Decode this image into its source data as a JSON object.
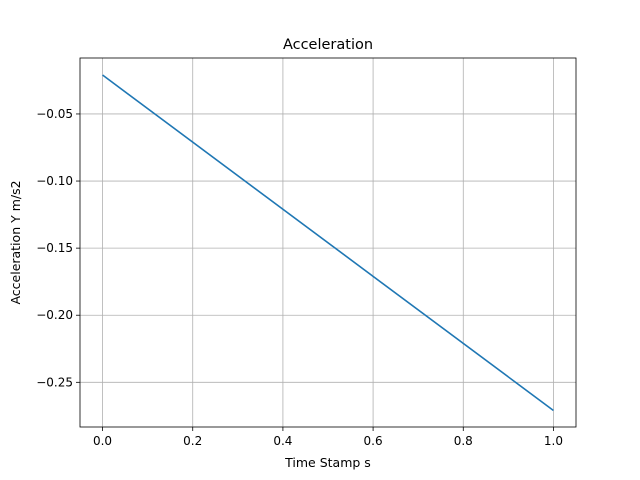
{
  "chart_data": {
    "type": "line",
    "title": "Acceleration",
    "xlabel": "Time Stamp s",
    "ylabel": "Acceleration Y m/s2",
    "xlim": [
      -0.05,
      1.05
    ],
    "ylim": [
      -0.2833,
      -0.0083
    ],
    "xticks": [
      0.0,
      0.2,
      0.4,
      0.6,
      0.8,
      1.0
    ],
    "xtick_labels": [
      "0.0",
      "0.2",
      "0.4",
      "0.6",
      "0.8",
      "1.0"
    ],
    "yticks": [
      -0.05,
      -0.1,
      -0.15,
      -0.2,
      -0.25
    ],
    "ytick_labels": [
      "−0.05",
      "−0.10",
      "−0.15",
      "−0.20",
      "−0.25"
    ],
    "grid": true,
    "series": [
      {
        "color": "#1f77b4",
        "x": [
          0.0,
          1.0
        ],
        "y": [
          -0.021,
          -0.271
        ]
      }
    ]
  }
}
